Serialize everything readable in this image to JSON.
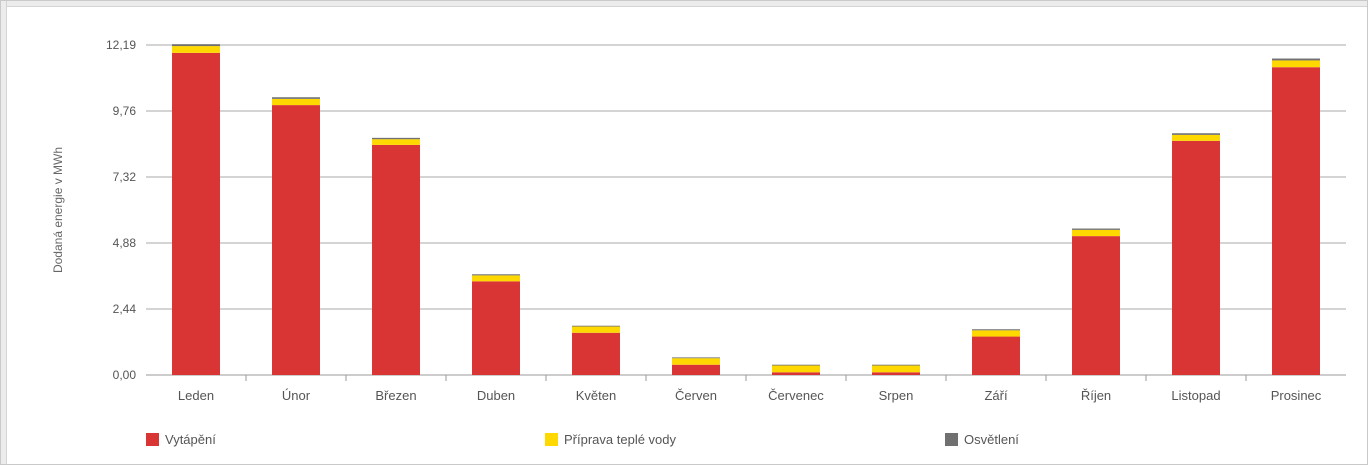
{
  "chart_data": {
    "type": "bar",
    "stacked": true,
    "ylabel": "Dodaná energie v MWh",
    "ylim": [
      0,
      12.19
    ],
    "yticks": [
      "0,00",
      "2,44",
      "4,88",
      "7,32",
      "9,76",
      "12,19"
    ],
    "categories": [
      "Leden",
      "Únor",
      "Březen",
      "Duben",
      "Květen",
      "Červen",
      "Červenec",
      "Srpen",
      "Září",
      "Říjen",
      "Listopad",
      "Prosinec"
    ],
    "series": [
      {
        "name": "Vytápění",
        "color": "#d93535",
        "values": [
          11.9,
          9.97,
          8.5,
          3.46,
          1.56,
          0.38,
          0.1,
          0.1,
          1.42,
          5.13,
          8.65,
          11.37
        ]
      },
      {
        "name": "Příprava teplé vody",
        "color": "#ffd800",
        "values": [
          0.25,
          0.23,
          0.21,
          0.22,
          0.23,
          0.24,
          0.25,
          0.25,
          0.23,
          0.23,
          0.22,
          0.25
        ]
      },
      {
        "name": "Osvětlení",
        "color": "#707070",
        "values": [
          0.07,
          0.06,
          0.05,
          0.04,
          0.03,
          0.03,
          0.03,
          0.03,
          0.04,
          0.05,
          0.06,
          0.07
        ]
      }
    ],
    "grid": true,
    "legend": "bottom"
  }
}
